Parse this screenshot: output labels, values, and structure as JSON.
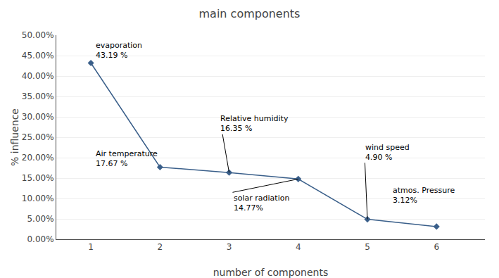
{
  "chart_data": {
    "type": "line",
    "title": "main components",
    "xlabel": "number of components",
    "ylabel": "% influence",
    "x": [
      1,
      2,
      3,
      4,
      5,
      6
    ],
    "values": [
      43.19,
      17.67,
      16.35,
      14.77,
      4.9,
      3.12
    ],
    "color": "#3a5f8a",
    "marker": "diamond",
    "xlim": [
      0.5,
      6.7
    ],
    "xticks": [
      1,
      2,
      3,
      4,
      5,
      6
    ],
    "ylim": [
      0,
      50
    ],
    "yticks": [
      {
        "value": 0,
        "label": "0.00%"
      },
      {
        "value": 5,
        "label": "5.00%"
      },
      {
        "value": 10,
        "label": "10.00%"
      },
      {
        "value": 15,
        "label": "15.00%"
      },
      {
        "value": 20,
        "label": "20.00%"
      },
      {
        "value": 25,
        "label": "25.00%"
      },
      {
        "value": 30,
        "label": "30.00%"
      },
      {
        "value": 35,
        "label": "35.00%"
      },
      {
        "value": 40,
        "label": "40.00%"
      },
      {
        "value": 45,
        "label": "45.00%"
      },
      {
        "value": 50,
        "label": "50.00%"
      }
    ],
    "grid": true,
    "annotations": [
      {
        "text": "evaporation\n43.19 %",
        "x": 1.05,
        "y": 49.0
      },
      {
        "text": "Air temperature\n17.67 %",
        "x": 1.05,
        "y": 22.5
      },
      {
        "text": "Relative humidity\n16.35 %",
        "x": 2.85,
        "y": 31.0,
        "arrow_to": [
          3.0,
          16.35
        ]
      },
      {
        "text": "solar radiation\n14.77%",
        "x": 3.05,
        "y": 11.5,
        "arrow_to": [
          4.0,
          14.77
        ]
      },
      {
        "text": "wind speed\n4.90 %",
        "x": 4.95,
        "y": 24.0,
        "arrow_to": [
          5.0,
          4.9
        ]
      },
      {
        "text": "atmos. Pressure\n3.12%",
        "x": 5.35,
        "y": 13.5
      }
    ]
  }
}
